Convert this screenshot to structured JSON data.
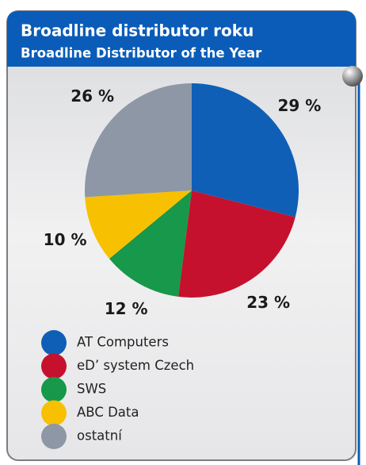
{
  "chart_data": {
    "type": "pie",
    "title": "Broadline distributor roku",
    "subtitle": "Broadline Distributor of the Year",
    "categories": [
      "AT Computers",
      "eD’ system Czech",
      "SWS",
      "ABC Data",
      "ostatní"
    ],
    "values": [
      29,
      23,
      12,
      10,
      26
    ],
    "value_labels": [
      "29 %",
      "23 %",
      "12 %",
      "10 %",
      "26 %"
    ],
    "colors": [
      "#0f5fb6",
      "#c5112d",
      "#17984a",
      "#f7c000",
      "#8e97a5"
    ]
  }
}
